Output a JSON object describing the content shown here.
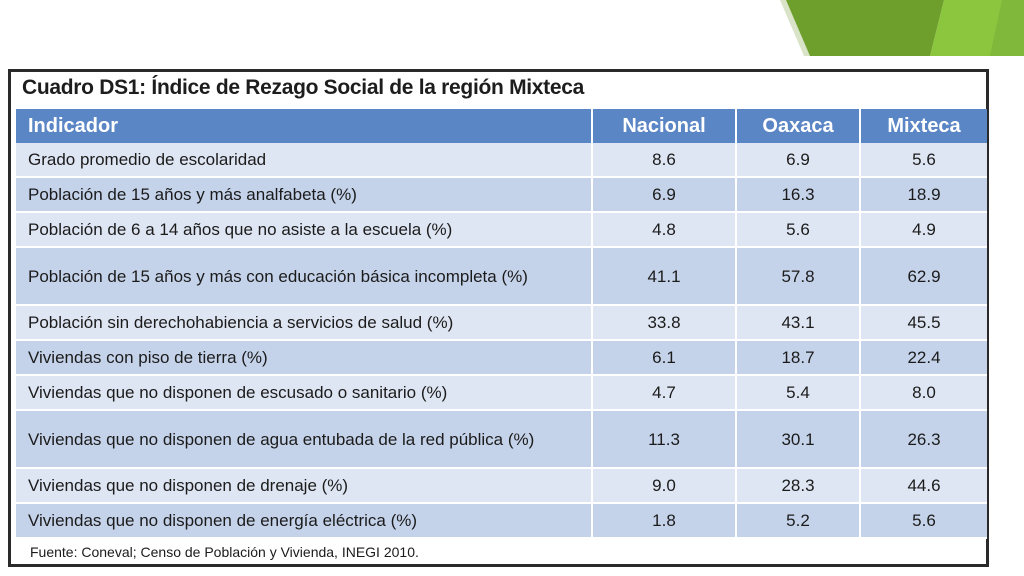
{
  "table": {
    "title": "Cuadro DS1: Índice de Rezago Social de la región Mixteca",
    "headers": [
      "Indicador",
      "Nacional",
      "Oaxaca",
      "Mixteca"
    ],
    "rows": [
      {
        "label": "Grado promedio de escolaridad",
        "nacional": "8.6",
        "oaxaca": "6.9",
        "mixteca": "5.6"
      },
      {
        "label": "Población de 15 años y más analfabeta (%)",
        "nacional": "6.9",
        "oaxaca": "16.3",
        "mixteca": "18.9"
      },
      {
        "label": "Población de 6 a 14 años que no asiste a la escuela (%)",
        "nacional": "4.8",
        "oaxaca": "5.6",
        "mixteca": "4.9"
      },
      {
        "label": "Población de 15 años y más con educación básica incompleta (%)",
        "nacional": "41.1",
        "oaxaca": "57.8",
        "mixteca": "62.9"
      },
      {
        "label": "Población sin derechohabiencia a servicios de salud (%)",
        "nacional": "33.8",
        "oaxaca": "43.1",
        "mixteca": "45.5"
      },
      {
        "label": "Viviendas con piso de tierra (%)",
        "nacional": "6.1",
        "oaxaca": "18.7",
        "mixteca": "22.4"
      },
      {
        "label": "Viviendas que no disponen de escusado o sanitario (%)",
        "nacional": "4.7",
        "oaxaca": "5.4",
        "mixteca": "8.0"
      },
      {
        "label": "Viviendas que no disponen de agua entubada de la red pública (%)",
        "nacional": "11.3",
        "oaxaca": "30.1",
        "mixteca": "26.3"
      },
      {
        "label": "Viviendas que no disponen de drenaje (%)",
        "nacional": "9.0",
        "oaxaca": "28.3",
        "mixteca": "44.6"
      },
      {
        "label": "Viviendas que no disponen de energía eléctrica (%)",
        "nacional": "1.8",
        "oaxaca": "5.2",
        "mixteca": "5.6"
      }
    ],
    "source": "Fuente: Coneval; Censo de Población y Vivienda, INEGI 2010."
  },
  "colors": {
    "header_bg": "#5b86c5",
    "row_light": "#dfe6f3",
    "row_dark": "#c5d3ea",
    "accent_green_dark": "#6e9f2d",
    "accent_green_light": "#8cc63f"
  }
}
